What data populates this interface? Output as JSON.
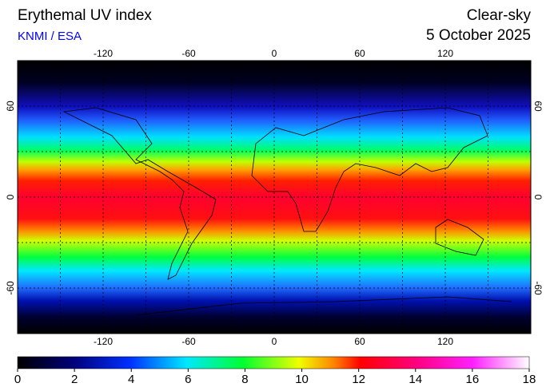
{
  "header": {
    "title": "Erythemal UV index",
    "source": "KNMI / ESA",
    "condition": "Clear-sky",
    "date": "5 October 2025"
  },
  "map": {
    "xlim": [
      -180,
      180
    ],
    "ylim": [
      -90,
      90
    ],
    "xticks": [
      -120,
      -60,
      0,
      60,
      120
    ],
    "yticks": [
      60,
      0,
      -60
    ]
  },
  "colorbar": {
    "lim": [
      0,
      18
    ],
    "ticks": [
      0,
      2,
      4,
      6,
      8,
      10,
      12,
      14,
      16,
      18
    ]
  }
}
